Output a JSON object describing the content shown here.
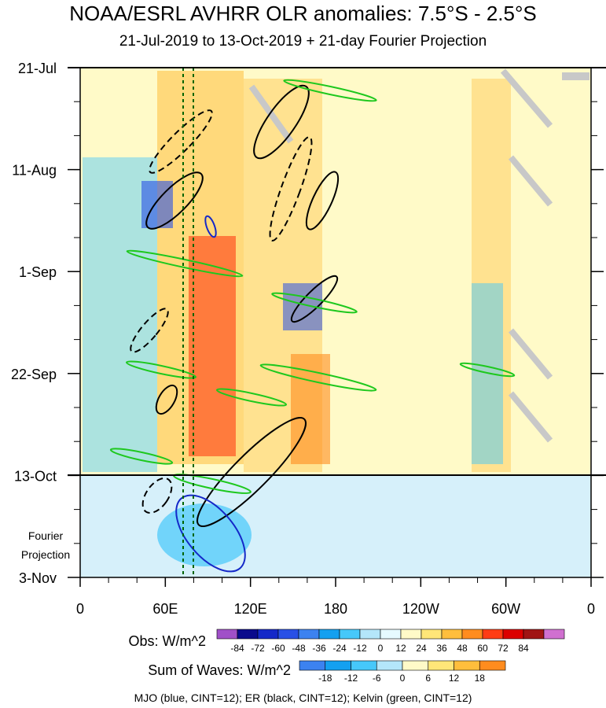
{
  "chart_data": {
    "type": "heatmap",
    "title": "NOAA/ESRL AVHRR OLR anomalies: 7.5°S - 2.5°S",
    "subtitle": "21-Jul-2019 to 13-Oct-2019 + 21-day Fourier Projection",
    "y_ticks": [
      "21-Jul",
      "11-Aug",
      "1-Sep",
      "22-Sep",
      "13-Oct",
      "3-Nov"
    ],
    "y_dates": [
      "2019-07-21",
      "2019-08-11",
      "2019-09-01",
      "2019-09-22",
      "2019-10-13",
      "2019-11-03"
    ],
    "projection_label_line1": "Fourier",
    "projection_label_line2": "Projection",
    "x_ticks": [
      "0",
      "60E",
      "120E",
      "180",
      "120W",
      "60W",
      "0"
    ],
    "x_longitudes": [
      0,
      60,
      120,
      180,
      240,
      300,
      360
    ],
    "obs_colorbar": {
      "label": "Obs: W/m^2",
      "ticks": [
        "-84",
        "-72",
        "-60",
        "-48",
        "-36",
        "-24",
        "-12",
        "0",
        "12",
        "24",
        "36",
        "48",
        "60",
        "72",
        "84"
      ],
      "colors": [
        "#a050c8",
        "#0a0a8c",
        "#1428c8",
        "#2850e6",
        "#3c82f0",
        "#14a0f0",
        "#46c8fa",
        "#b4e6fa",
        "#e6faff",
        "#fffac8",
        "#ffe678",
        "#ffbe3c",
        "#ff8c1e",
        "#ff3c14",
        "#dc0000",
        "#a01414",
        "#d070d0"
      ]
    },
    "waves_colorbar": {
      "label": "Sum of Waves: W/m^2",
      "ticks": [
        "-18",
        "-12",
        "-6",
        "0",
        "6",
        "12",
        "18"
      ],
      "colors": [
        "#3c82f0",
        "#14a0f0",
        "#46c8fa",
        "#b4e6fa",
        "#fffac8",
        "#ffe678",
        "#ffbe3c",
        "#ff8c1e"
      ]
    },
    "annotations": [
      "13-Oct"
    ],
    "footer": "MJO (blue, CINT=12); ER (black, CINT=12); Kelvin (green, CINT=12)"
  }
}
